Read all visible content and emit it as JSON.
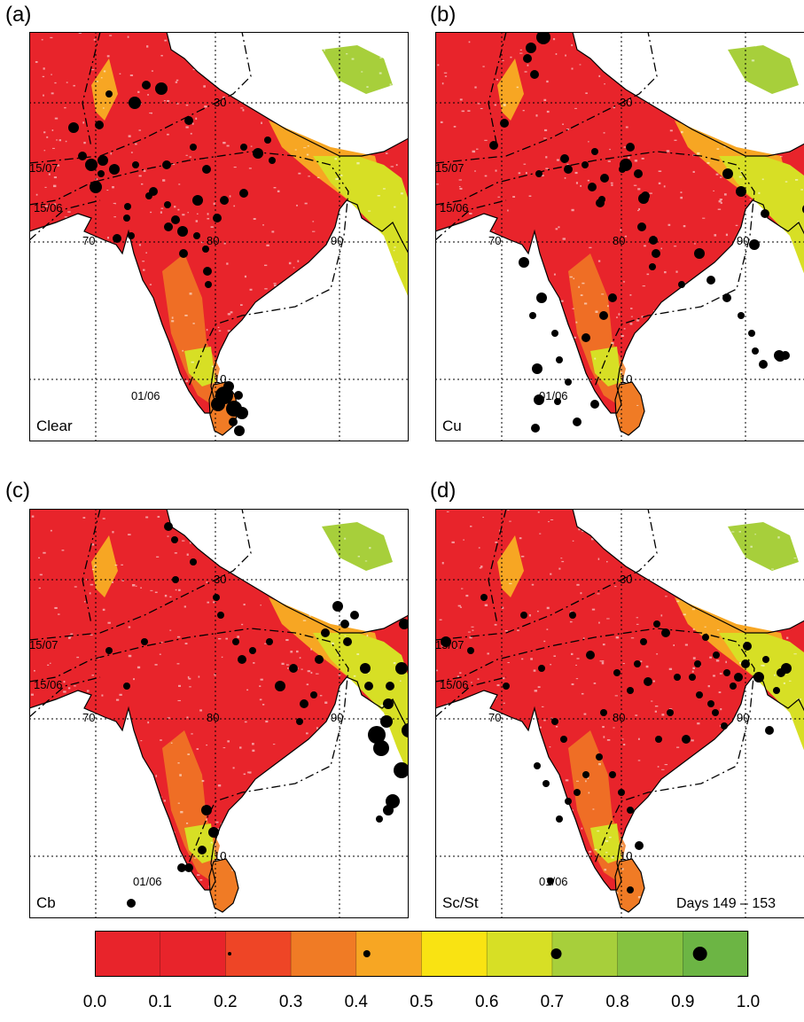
{
  "panels": [
    {
      "letter": "(a)",
      "cloud": "Clear",
      "dots": [
        [
          83,
          5
        ],
        [
          87,
          9
        ],
        [
          119,
          13
        ],
        [
          108,
          15
        ],
        [
          132,
          10
        ],
        [
          149,
          13
        ],
        [
          181,
          9
        ],
        [
          185,
          9
        ],
        [
          269,
          21
        ],
        [
          258,
          37
        ],
        [
          274,
          45
        ],
        [
          79,
          3
        ],
        [
          81,
          1
        ],
        [
          96,
          1
        ],
        [
          110,
          1
        ],
        [
          99,
          1
        ],
        [
          111,
          1
        ],
        [
          135,
          1
        ],
        [
          156,
          2
        ],
        [
          157,
          3
        ],
        [
          173,
          2
        ],
        [
          174,
          1
        ],
        [
          189,
          2
        ],
        [
          199,
          2
        ],
        [
          201,
          1
        ],
        [
          202,
          2
        ],
        [
          242,
          1
        ],
        [
          212,
          1
        ],
        [
          242,
          2
        ],
        [
          213,
          6
        ],
        [
          220,
          4
        ],
        [
          231,
          8
        ],
        [
          240,
          4
        ],
        [
          237,
          2
        ],
        [
          250,
          1
        ],
        [
          236,
          2
        ],
        [
          230,
          1
        ],
        [
          190,
          2
        ],
        [
          184,
          1
        ],
        [
          163,
          2
        ],
        [
          165,
          1
        ],
        [
          166,
          2
        ],
        [
          152,
          1
        ],
        [
          151,
          1
        ],
        [
          139,
          3
        ],
        [
          150,
          1
        ],
        [
          123,
          3
        ],
        [
          128,
          1
        ],
        [
          134,
          2
        ],
        [
          113,
          1
        ],
        [
          99,
          1
        ],
        [
          110,
          2
        ],
        [
          86,
          1
        ],
        [
          82,
          1
        ],
        [
          96,
          1
        ],
        [
          72,
          1
        ],
        [
          57,
          1
        ],
        [
          56,
          1
        ],
        [
          47,
          1
        ]
      ]
    },
    {
      "letter": "(b)",
      "cloud": "Cu",
      "dots": [
        [
          40,
          2
        ],
        [
          41,
          5
        ],
        [
          45,
          1
        ],
        [
          82,
          2
        ],
        [
          77,
          4
        ],
        [
          81,
          3
        ],
        [
          62,
          1
        ],
        [
          80,
          1
        ],
        [
          63,
          1
        ],
        [
          97,
          3
        ],
        [
          117,
          1
        ],
        [
          146,
          1
        ],
        [
          188,
          1
        ],
        [
          150,
          3
        ],
        [
          169,
          2
        ],
        [
          177,
          3
        ],
        [
          186,
          2
        ],
        [
          180,
          3
        ],
        [
          191,
          3
        ],
        [
          220,
          3
        ],
        [
          211,
          1
        ],
        [
          229,
          2
        ],
        [
          237,
          4
        ],
        [
          233,
          3
        ],
        [
          246,
          2
        ],
        [
          249,
          2
        ],
        [
          245,
          4
        ],
        [
          278,
          1
        ],
        [
          298,
          4
        ],
        [
          311,
          4
        ],
        [
          329,
          2
        ],
        [
          345,
          3
        ],
        [
          357,
          2
        ],
        [
          361,
          4
        ],
        [
          370,
          4
        ],
        [
          388,
          1
        ],
        [
          395,
          1
        ],
        [
          399,
          1
        ],
        [
          406,
          2
        ],
        [
          426,
          2
        ],
        [
          431,
          1
        ],
        [
          447,
          1
        ],
        [
          449,
          1
        ],
        [
          457,
          1
        ],
        [
          469,
          1
        ],
        [
          489,
          1
        ],
        [
          482,
          1
        ],
        [
          521,
          1
        ],
        [
          519,
          1
        ],
        [
          525,
          3
        ],
        [
          529,
          2
        ],
        [
          542,
          2
        ],
        [
          550,
          2
        ],
        [
          555,
          1
        ],
        [
          567,
          1
        ],
        [
          586,
          1
        ],
        [
          601,
          1
        ],
        [
          605,
          1
        ],
        [
          618,
          1
        ],
        [
          632,
          1
        ],
        [
          642,
          1
        ],
        [
          644,
          1
        ],
        [
          651,
          2
        ],
        [
          660,
          1
        ],
        [
          677,
          1
        ],
        [
          680,
          1
        ],
        [
          715,
          1
        ],
        [
          749,
          1
        ],
        [
          755,
          1
        ],
        [
          761,
          1
        ],
        [
          754,
          1
        ],
        [
          746,
          1
        ],
        [
          752,
          1
        ],
        [
          742,
          1
        ],
        [
          716,
          1
        ],
        [
          700,
          1
        ],
        [
          690,
          1
        ]
      ]
    },
    {
      "letter": "(c)",
      "cloud": "Cb",
      "dots": [
        [
          17,
          1
        ],
        [
          101,
          1
        ],
        [
          157,
          3
        ],
        [
          164,
          1
        ],
        [
          167,
          2
        ],
        [
          185,
          1
        ],
        [
          211,
          1
        ],
        [
          216,
          1
        ],
        [
          233,
          1
        ],
        [
          240,
          1
        ],
        [
          252,
          1
        ],
        [
          271,
          1
        ],
        [
          283,
          2
        ],
        [
          298,
          2
        ],
        [
          305,
          2
        ],
        [
          310,
          1
        ],
        [
          321,
          2
        ],
        [
          327,
          1
        ],
        [
          334,
          2
        ],
        [
          348,
          1
        ],
        [
          356,
          1
        ],
        [
          359,
          2
        ],
        [
          367,
          1
        ],
        [
          379,
          1
        ],
        [
          383,
          1
        ],
        [
          392,
          2
        ],
        [
          397,
          1
        ],
        [
          403,
          1
        ],
        [
          405,
          2
        ],
        [
          407,
          1
        ],
        [
          423,
          1
        ],
        [
          423,
          1
        ],
        [
          433,
          1
        ],
        [
          448,
          1
        ],
        [
          449,
          1
        ],
        [
          454,
          1
        ],
        [
          455,
          1
        ],
        [
          463,
          1
        ],
        [
          483,
          1
        ],
        [
          500,
          2
        ],
        [
          513,
          1
        ],
        [
          518,
          1
        ],
        [
          521,
          1
        ],
        [
          521,
          1
        ],
        [
          525,
          2
        ],
        [
          541,
          1
        ],
        [
          559,
          1
        ],
        [
          570,
          2
        ],
        [
          578,
          1
        ],
        [
          594,
          1
        ],
        [
          606,
          1
        ],
        [
          612,
          1
        ],
        [
          617,
          1
        ],
        [
          624,
          1
        ],
        [
          635,
          1
        ],
        [
          636,
          1
        ],
        [
          653,
          1
        ],
        [
          661,
          1
        ],
        [
          666,
          1
        ],
        [
          674,
          1
        ],
        [
          684,
          1
        ],
        [
          691,
          1
        ],
        [
          694,
          1
        ],
        [
          698,
          1
        ],
        [
          709,
          1
        ],
        [
          728,
          1
        ],
        [
          729,
          1
        ],
        [
          731,
          1
        ],
        [
          733,
          1
        ],
        [
          736,
          1
        ],
        [
          743,
          1
        ],
        [
          755,
          1
        ],
        [
          760,
          1
        ],
        [
          763,
          1
        ],
        [
          770,
          1
        ],
        [
          773,
          1
        ],
        [
          774,
          1
        ],
        [
          786,
          1
        ],
        [
          794,
          1
        ],
        [
          800,
          1
        ]
      ]
    },
    {
      "letter": "(d)",
      "cloud": "Sc/St",
      "dots": [
        [
          12,
          3
        ],
        [
          16,
          1
        ],
        [
          21,
          1
        ],
        [
          35,
          1
        ],
        [
          47,
          1
        ],
        [
          49,
          1
        ],
        [
          51,
          1
        ],
        [
          58,
          1
        ],
        [
          60,
          1
        ],
        [
          72,
          2
        ],
        [
          73,
          1
        ],
        [
          78,
          1
        ],
        [
          87,
          1
        ],
        [
          90,
          1
        ],
        [
          100,
          2
        ],
        [
          102,
          1
        ],
        [
          107,
          1
        ],
        [
          113,
          1
        ],
        [
          118,
          1
        ],
        [
          123,
          1
        ],
        [
          136,
          2
        ],
        [
          138,
          1
        ],
        [
          141,
          1
        ],
        [
          149,
          1
        ],
        [
          153,
          1
        ],
        [
          157,
          1
        ],
        [
          168,
          1
        ],
        [
          171,
          1
        ],
        [
          175,
          1
        ],
        [
          176,
          1
        ],
        [
          181,
          1
        ],
        [
          189,
          1
        ],
        [
          197,
          1
        ],
        [
          205,
          1
        ],
        [
          217,
          1
        ],
        [
          219,
          1
        ],
        [
          222,
          1
        ],
        [
          228,
          1
        ],
        [
          235,
          1
        ],
        [
          240,
          1
        ],
        [
          243,
          1
        ],
        [
          250,
          1
        ],
        [
          252,
          1
        ],
        [
          260,
          2
        ],
        [
          265,
          1
        ],
        [
          273,
          1
        ],
        [
          283,
          1
        ],
        [
          290,
          1
        ],
        [
          296,
          1
        ],
        [
          298,
          1
        ],
        [
          305,
          1
        ],
        [
          311,
          1
        ],
        [
          316,
          1
        ],
        [
          317,
          1
        ],
        [
          326,
          1
        ],
        [
          329,
          1
        ],
        [
          336,
          1
        ],
        [
          342,
          2
        ],
        [
          350,
          1
        ],
        [
          352,
          1
        ],
        [
          365,
          1
        ],
        [
          373,
          1
        ],
        [
          377,
          1
        ],
        [
          385,
          1
        ],
        [
          390,
          1
        ],
        [
          396,
          1
        ],
        [
          409,
          1
        ],
        [
          414,
          1
        ],
        [
          418,
          1
        ],
        [
          423,
          1
        ],
        [
          431,
          1
        ],
        [
          432,
          1
        ],
        [
          439,
          1
        ],
        [
          440,
          1
        ],
        [
          443,
          1
        ],
        [
          459,
          1
        ],
        [
          462,
          1
        ],
        [
          466,
          1
        ],
        [
          471,
          1
        ],
        [
          480,
          1
        ],
        [
          485,
          1
        ],
        [
          486,
          1
        ],
        [
          496,
          1
        ],
        [
          497,
          1
        ],
        [
          501,
          1
        ],
        [
          502,
          1
        ],
        [
          511,
          1
        ],
        [
          517,
          1
        ]
      ]
    }
  ],
  "gridlabels": {
    "lat30": "30",
    "lat10": "10",
    "lon70": "70",
    "lon80": "80",
    "lon90": "90"
  },
  "isochrones": {
    "jul15": "15/07",
    "jun15": "15/06",
    "jun01": "01/06"
  },
  "days_label": "Days 149 – 153",
  "legend": {
    "colors": [
      "#e8242b",
      "#e8242b",
      "#ee4526",
      "#f07b25",
      "#f7a623",
      "#f9e312",
      "#d7df25",
      "#a7cf3b",
      "#86c240",
      "#6cb544"
    ],
    "ticks": [
      "0.0",
      "0.1",
      "0.2",
      "0.3",
      "0.4",
      "0.5",
      "0.6",
      "0.7",
      "0.8",
      "0.9",
      "1.0"
    ]
  }
}
